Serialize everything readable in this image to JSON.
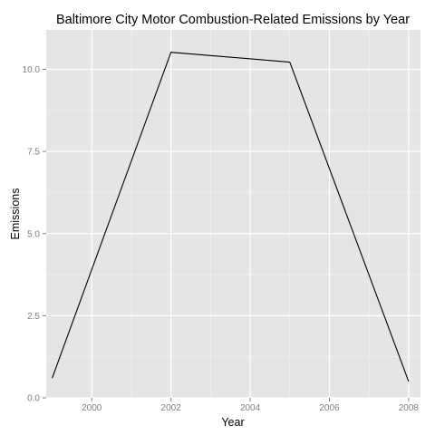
{
  "chart_data": {
    "type": "line",
    "title": "Baltimore City Motor Combustion-Related Emissions by Year",
    "xlabel": "Year",
    "ylabel": "Emissions",
    "x": [
      1999,
      2002,
      2005,
      2008
    ],
    "series": [
      {
        "name": "Emissions",
        "values": [
          0.6,
          10.52,
          10.22,
          0.5
        ]
      }
    ],
    "xlim": [
      1998.85,
      2008.3
    ],
    "ylim": [
      0,
      11.2
    ],
    "xticks": [
      2000,
      2002,
      2004,
      2006,
      2008
    ],
    "xtick_labels": [
      "2000",
      "2002",
      "2004",
      "2006",
      "2008"
    ],
    "yticks": [
      0.0,
      2.5,
      5.0,
      7.5,
      10.0
    ],
    "ytick_labels": [
      "0.0",
      "2.5",
      "5.0",
      "7.5",
      "10.0"
    ],
    "grid": true,
    "colors": {
      "panel": "#e5e5e5",
      "grid_major": "#ffffff",
      "grid_minor": "#f2f2f2",
      "line": "#000000",
      "tick_text": "#7f7f7f",
      "tick_mark": "#7f7f7f"
    }
  }
}
